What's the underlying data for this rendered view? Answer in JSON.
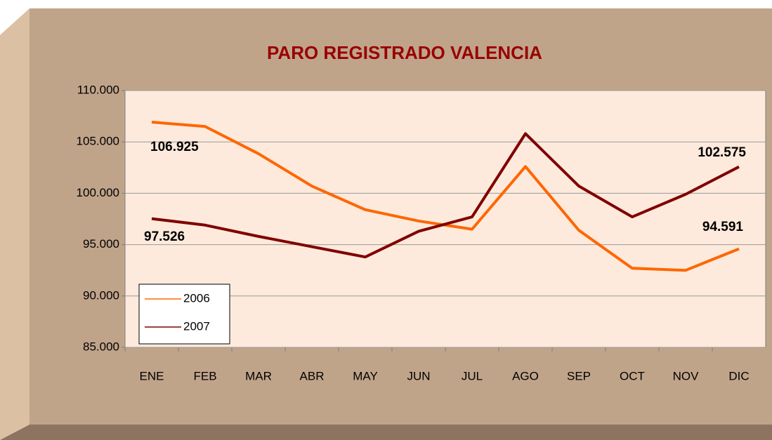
{
  "chart_data": {
    "type": "line",
    "title": "PARO REGISTRADO VALENCIA",
    "categories": [
      "ENE",
      "FEB",
      "MAR",
      "ABR",
      "MAY",
      "JUN",
      "JUL",
      "AGO",
      "SEP",
      "OCT",
      "NOV",
      "DIC"
    ],
    "series": [
      {
        "name": "2006",
        "color": "#ff6600",
        "values": [
          106925,
          106500,
          103850,
          100700,
          98400,
          97300,
          96500,
          102600,
          96400,
          92700,
          92500,
          94591
        ],
        "value_labels": [
          "106.925",
          null,
          null,
          null,
          null,
          null,
          null,
          null,
          null,
          null,
          null,
          "94.591"
        ]
      },
      {
        "name": "2007",
        "color": "#800000",
        "values": [
          97526,
          96900,
          95800,
          94800,
          93800,
          96300,
          97700,
          105800,
          100700,
          97700,
          99900,
          102575
        ],
        "value_labels": [
          "97.526",
          null,
          null,
          null,
          null,
          null,
          null,
          null,
          null,
          null,
          null,
          "102.575"
        ]
      }
    ],
    "ylim": [
      85000,
      110000
    ],
    "yticks": [
      {
        "value": 85000,
        "label": "85.000"
      },
      {
        "value": 90000,
        "label": "90.000"
      },
      {
        "value": 95000,
        "label": "95.000"
      },
      {
        "value": 100000,
        "label": "100.000"
      },
      {
        "value": 105000,
        "label": "105.000"
      },
      {
        "value": 110000,
        "label": "110.000"
      }
    ],
    "grid": true,
    "legend": "lower left"
  }
}
